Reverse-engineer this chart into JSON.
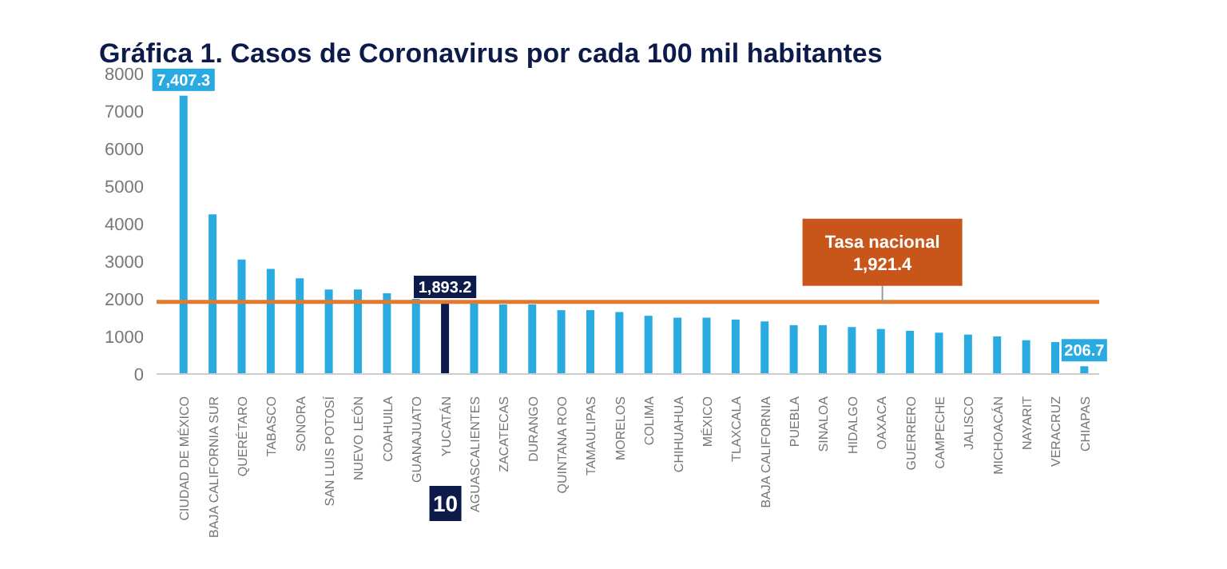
{
  "chart_data": {
    "type": "bar",
    "title": "Gráfica 1. Casos de Coronavirus por cada 100 mil habitantes",
    "categories": [
      "CIUDAD DE MÉXICO",
      "BAJA CALIFORNIA SUR",
      "QUERÉTARO",
      "TABASCO",
      "SONORA",
      "SAN LUIS POTOSÍ",
      "NUEVO LEÓN",
      "COAHUILA",
      "GUANAJUATO",
      "YUCATÁN",
      "AGUASCALIENTES",
      "ZACATECAS",
      "DURANGO",
      "QUINTANA ROO",
      "TAMAULIPAS",
      "MORELOS",
      "COLIMA",
      "CHIHUAHUA",
      "MÉXICO",
      "TLAXCALA",
      "BAJA CALIFORNIA",
      "PUEBLA",
      "SINALOA",
      "HIDALGO",
      "OAXACA",
      "GUERRERO",
      "CAMPECHE",
      "JALISCO",
      "MICHOACÁN",
      "NAYARIT",
      "VERACRUZ",
      "CHIAPAS"
    ],
    "values": [
      7407.3,
      4250,
      3050,
      2800,
      2550,
      2250,
      2250,
      2150,
      2000,
      1893.2,
      1950,
      1850,
      1850,
      1700,
      1700,
      1650,
      1550,
      1500,
      1500,
      1450,
      1400,
      1300,
      1300,
      1250,
      1200,
      1150,
      1100,
      1050,
      1000,
      900,
      850,
      206.7
    ],
    "colors": [
      "#29abe2",
      "#29abe2",
      "#29abe2",
      "#29abe2",
      "#29abe2",
      "#29abe2",
      "#29abe2",
      "#29abe2",
      "#29abe2",
      "#0d1b4b",
      "#29abe2",
      "#29abe2",
      "#29abe2",
      "#29abe2",
      "#29abe2",
      "#29abe2",
      "#29abe2",
      "#29abe2",
      "#29abe2",
      "#29abe2",
      "#29abe2",
      "#29abe2",
      "#29abe2",
      "#29abe2",
      "#29abe2",
      "#29abe2",
      "#29abe2",
      "#29abe2",
      "#29abe2",
      "#29abe2",
      "#29abe2",
      "#29abe2"
    ],
    "value_labels": [
      "7,407.3",
      null,
      null,
      null,
      null,
      null,
      null,
      null,
      null,
      "1,893.2",
      null,
      null,
      null,
      null,
      null,
      null,
      null,
      null,
      null,
      null,
      null,
      null,
      null,
      null,
      null,
      null,
      null,
      null,
      null,
      null,
      null,
      "206.7"
    ],
    "ylim": [
      0,
      8000
    ],
    "yticks": [
      0,
      1000,
      2000,
      3000,
      4000,
      5000,
      6000,
      7000,
      8000
    ],
    "ref_lines": [
      {
        "axis": "y",
        "value": 1921.4,
        "label": "Tasa nacional\n1,921.4",
        "color": "#e07a2f"
      }
    ],
    "annotations": [
      "10"
    ]
  }
}
